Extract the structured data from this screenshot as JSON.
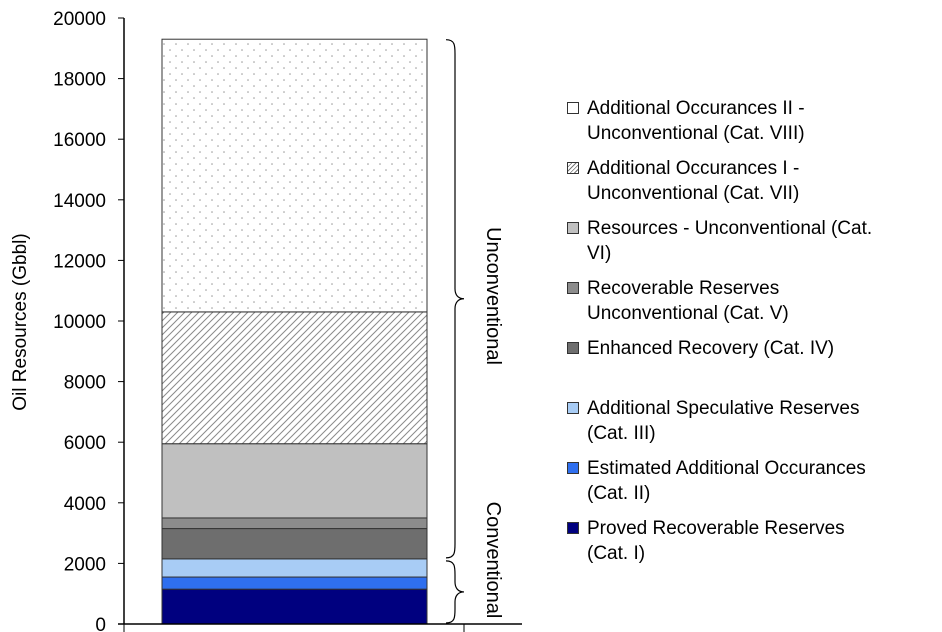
{
  "chart_data": {
    "type": "bar",
    "stacked": true,
    "categories": [
      ""
    ],
    "ylabel": "Oil Resources (Gbbl)",
    "xlabel": "",
    "ylim": [
      0,
      20000
    ],
    "yticks": [
      "0",
      "2000",
      "4000",
      "6000",
      "8000",
      "10000",
      "12000",
      "14000",
      "16000",
      "18000",
      "20000"
    ],
    "grid": false,
    "legend_position": "right",
    "series": [
      {
        "name": "Proved Recoverable Reserves (Cat. I)",
        "values": [
          1150
        ],
        "color": "#00007f",
        "pattern": "solid"
      },
      {
        "name": "Estimated Additional Occurances (Cat. II)",
        "values": [
          400
        ],
        "color": "#2f6fef",
        "pattern": "solid"
      },
      {
        "name": "Additional Speculative Reserves (Cat. III)",
        "values": [
          600
        ],
        "color": "#a8ccf5",
        "pattern": "solid"
      },
      {
        "name": "Enhanced Recovery (Cat. IV)",
        "values": [
          1000
        ],
        "color": "#6e6e6e",
        "pattern": "solid"
      },
      {
        "name": "Recoverable Reserves Unconventional (Cat. V)",
        "values": [
          350
        ],
        "color": "#8c8c8c",
        "pattern": "solid"
      },
      {
        "name": "Resources - Unconventional (Cat. VI)",
        "values": [
          2450
        ],
        "color": "#c0c0c0",
        "pattern": "solid"
      },
      {
        "name": "Additional Occurances I - Unconventional (Cat. VII)",
        "values": [
          4350
        ],
        "color": "#ffffff",
        "pattern": "diagonal"
      },
      {
        "name": "Additional Occurances II - Unconventional (Cat. VIII)",
        "values": [
          9000
        ],
        "color": "#ffffff",
        "pattern": "dots"
      }
    ],
    "groups": [
      {
        "label": "Conventional",
        "from": 0,
        "to": 2150
      },
      {
        "label": "Unconventional",
        "from": 2150,
        "to": 19350
      }
    ],
    "legend": [
      {
        "series_index": 7,
        "lines": [
          "Additional Occurances II -",
          "Unconventional (Cat. VIII)"
        ]
      },
      {
        "series_index": 6,
        "lines": [
          "Additional Occurances I -",
          "Unconventional (Cat. VII)"
        ]
      },
      {
        "series_index": 5,
        "lines": [
          "Resources - Unconventional (Cat.",
          "VI)"
        ]
      },
      {
        "series_index": 4,
        "lines": [
          "Recoverable Reserves",
          "Unconventional (Cat. V)"
        ]
      },
      {
        "series_index": 3,
        "lines": [
          "Enhanced Recovery (Cat. IV)"
        ]
      },
      {
        "series_index": 2,
        "lines": [
          "Additional Speculative Reserves",
          "(Cat. III)"
        ]
      },
      {
        "series_index": 1,
        "lines": [
          "Estimated Additional Occurances",
          "(Cat. II)"
        ]
      },
      {
        "series_index": 0,
        "lines": [
          "Proved Recoverable Reserves",
          "(Cat. I)"
        ]
      }
    ]
  }
}
